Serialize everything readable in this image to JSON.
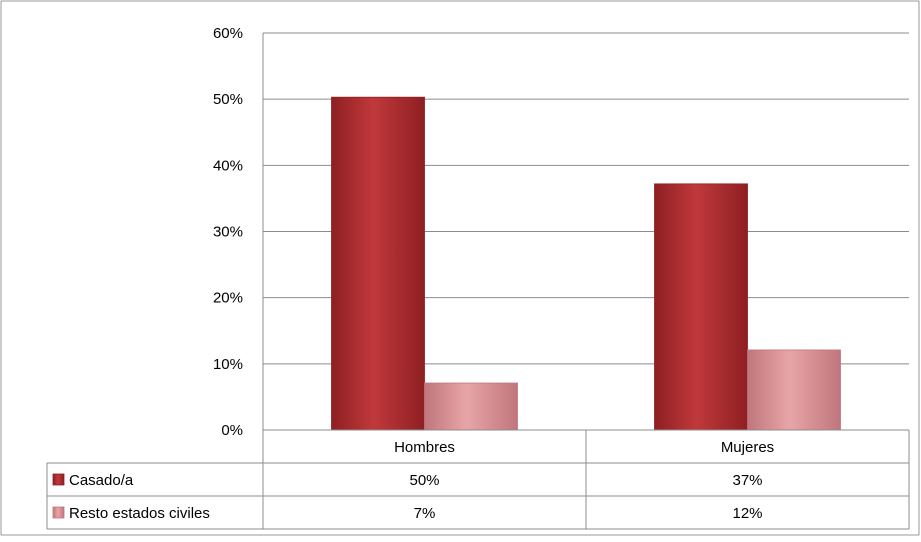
{
  "chart_data": {
    "type": "bar",
    "categories": [
      "Hombres",
      "Mujeres"
    ],
    "series": [
      {
        "name": "Casado/a",
        "values": [
          50.3,
          37.2
        ],
        "labels": [
          "50%",
          "37%"
        ],
        "color": "#c0393b",
        "color_dark": "#8e1f22"
      },
      {
        "name": "Resto estados civiles",
        "values": [
          7.1,
          12.1
        ],
        "labels": [
          "7%",
          "12%"
        ],
        "color": "#e8a5a8",
        "color_dark": "#c0767c"
      }
    ],
    "y_ticks": [
      "0%",
      "10%",
      "20%",
      "30%",
      "40%",
      "50%",
      "60%"
    ],
    "ylim": [
      0,
      60
    ],
    "grid": true,
    "legend": "data-table-left",
    "title": "",
    "xlabel": "",
    "ylabel": ""
  }
}
